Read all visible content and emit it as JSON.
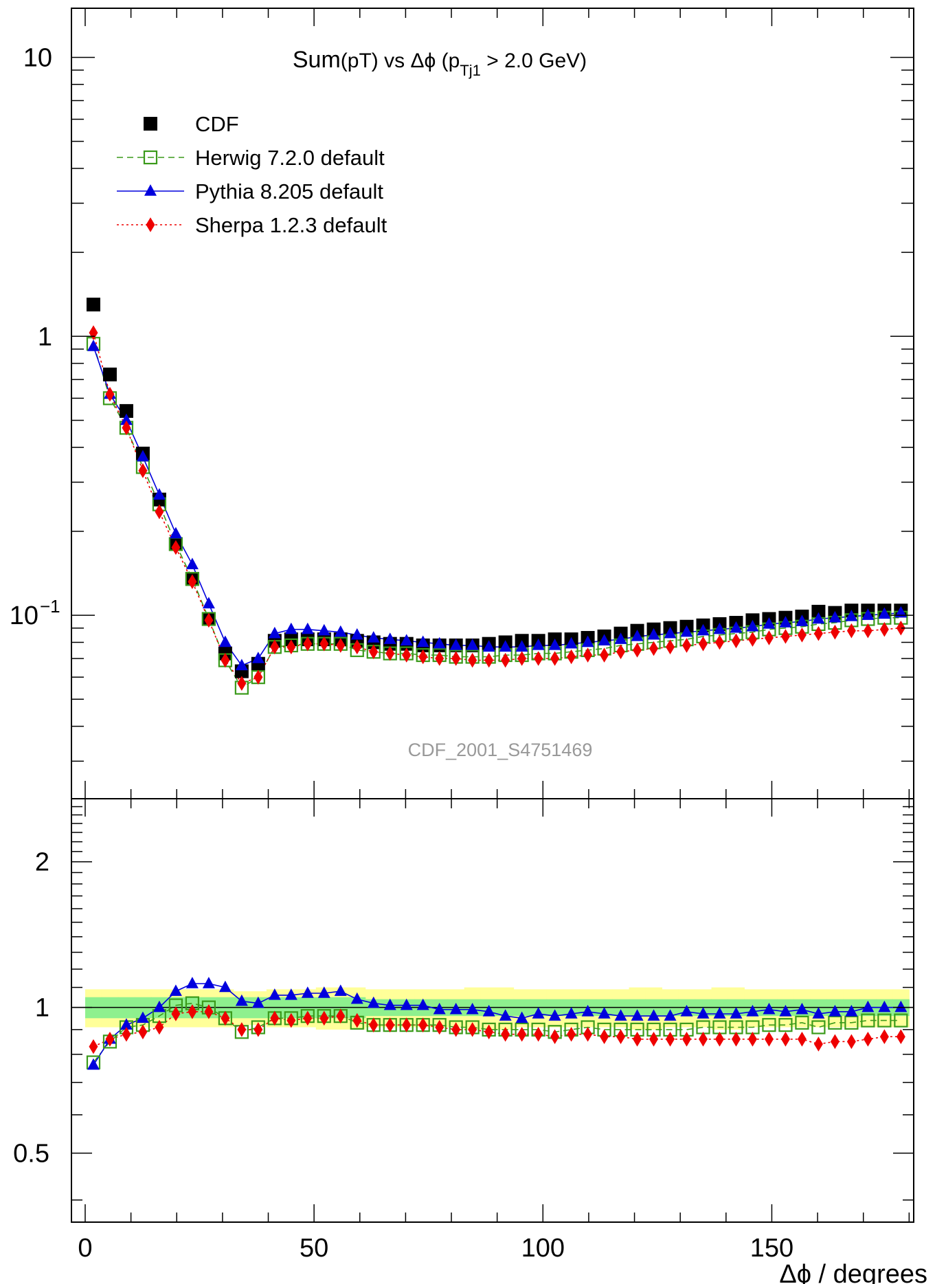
{
  "title": {
    "prefix": "Sum",
    "middle": "(pT) vs Δϕ (p",
    "sub": "Tj1",
    "suffix": " > 2.0 GeV)"
  },
  "watermark": "CDF_2001_S4751469",
  "xlabel": "Δϕ / degrees",
  "chart_data": [
    {
      "type": "scatter",
      "panel": "main",
      "yscale": "log",
      "xlim": [
        -3,
        181
      ],
      "ylim": [
        0.022,
        15
      ],
      "x_ticks": [
        "0",
        "50",
        "100",
        "150"
      ],
      "y_ticks": [
        "10",
        "1",
        "10^-1"
      ],
      "x": [
        1.8,
        5.4,
        9.0,
        12.6,
        16.2,
        19.8,
        23.4,
        27.0,
        30.6,
        34.2,
        37.8,
        41.4,
        45.0,
        48.6,
        52.2,
        55.8,
        59.4,
        63.0,
        66.6,
        70.2,
        73.8,
        77.4,
        81.0,
        84.6,
        88.2,
        91.8,
        95.4,
        99.0,
        102.6,
        106.2,
        109.8,
        113.4,
        117.0,
        120.6,
        124.2,
        127.8,
        131.4,
        135.0,
        138.6,
        142.2,
        145.8,
        149.4,
        153.0,
        156.6,
        160.2,
        163.8,
        167.4,
        171.0,
        174.6,
        178.2
      ],
      "series": [
        {
          "name": "CDF",
          "color": "#000000",
          "marker": "filled-square",
          "line": "none",
          "values": [
            1.3,
            0.73,
            0.54,
            0.38,
            0.26,
            0.18,
            0.135,
            0.097,
            0.073,
            0.063,
            0.067,
            0.081,
            0.082,
            0.082,
            0.082,
            0.082,
            0.081,
            0.08,
            0.079,
            0.079,
            0.078,
            0.078,
            0.078,
            0.078,
            0.079,
            0.08,
            0.081,
            0.081,
            0.082,
            0.082,
            0.083,
            0.084,
            0.086,
            0.088,
            0.089,
            0.09,
            0.091,
            0.092,
            0.093,
            0.094,
            0.096,
            0.097,
            0.098,
            0.099,
            0.103,
            0.102,
            0.104,
            0.104,
            0.104,
            0.104
          ]
        },
        {
          "name": "Herwig 7.2.0 default",
          "color": "#3a9a1a",
          "marker": "open-square",
          "line": "dashed",
          "values": [
            0.94,
            0.6,
            0.47,
            0.34,
            0.25,
            0.18,
            0.135,
            0.097,
            0.069,
            0.055,
            0.06,
            0.077,
            0.078,
            0.079,
            0.079,
            0.079,
            0.075,
            0.074,
            0.073,
            0.073,
            0.072,
            0.072,
            0.071,
            0.071,
            0.071,
            0.072,
            0.072,
            0.073,
            0.073,
            0.074,
            0.075,
            0.076,
            0.078,
            0.079,
            0.08,
            0.081,
            0.082,
            0.084,
            0.085,
            0.086,
            0.087,
            0.089,
            0.09,
            0.091,
            0.093,
            0.094,
            0.096,
            0.097,
            0.098,
            0.098
          ]
        },
        {
          "name": "Pythia 8.205 default",
          "color": "#0000dd",
          "marker": "filled-triangle",
          "line": "solid",
          "values": [
            0.92,
            0.62,
            0.5,
            0.37,
            0.27,
            0.196,
            0.152,
            0.11,
            0.08,
            0.066,
            0.07,
            0.086,
            0.089,
            0.089,
            0.088,
            0.087,
            0.085,
            0.083,
            0.082,
            0.081,
            0.08,
            0.079,
            0.078,
            0.078,
            0.077,
            0.077,
            0.077,
            0.078,
            0.078,
            0.079,
            0.08,
            0.081,
            0.082,
            0.084,
            0.085,
            0.086,
            0.087,
            0.088,
            0.089,
            0.09,
            0.091,
            0.093,
            0.094,
            0.095,
            0.097,
            0.098,
            0.099,
            0.1,
            0.101,
            0.102
          ]
        },
        {
          "name": "Sherpa 1.2.3 default",
          "color": "#ee0000",
          "marker": "filled-diamond",
          "line": "dotted",
          "values": [
            1.03,
            0.62,
            0.47,
            0.33,
            0.235,
            0.175,
            0.132,
            0.096,
            0.069,
            0.057,
            0.06,
            0.077,
            0.077,
            0.079,
            0.079,
            0.078,
            0.077,
            0.074,
            0.073,
            0.072,
            0.071,
            0.07,
            0.07,
            0.069,
            0.069,
            0.069,
            0.07,
            0.07,
            0.07,
            0.071,
            0.072,
            0.072,
            0.074,
            0.075,
            0.076,
            0.077,
            0.078,
            0.079,
            0.08,
            0.081,
            0.082,
            0.083,
            0.084,
            0.085,
            0.086,
            0.087,
            0.088,
            0.088,
            0.089,
            0.09
          ]
        }
      ]
    },
    {
      "type": "scatter",
      "panel": "ratio",
      "yscale": "log",
      "xlim": [
        -3,
        181
      ],
      "ylim": [
        0.36,
        2.7
      ],
      "x_ticks": [
        "0",
        "50",
        "100",
        "150"
      ],
      "y_ticks": [
        "2",
        "1",
        "0.5"
      ],
      "xlabel": "Δϕ / degrees",
      "x": [
        1.8,
        5.4,
        9.0,
        12.6,
        16.2,
        19.8,
        23.4,
        27.0,
        30.6,
        34.2,
        37.8,
        41.4,
        45.0,
        48.6,
        52.2,
        55.8,
        59.4,
        63.0,
        66.6,
        70.2,
        73.8,
        77.4,
        81.0,
        84.6,
        88.2,
        91.8,
        95.4,
        99.0,
        102.6,
        106.2,
        109.8,
        113.4,
        117.0,
        120.6,
        124.2,
        127.8,
        131.4,
        135.0,
        138.6,
        142.2,
        145.8,
        149.4,
        153.0,
        156.6,
        160.2,
        163.8,
        167.4,
        171.0,
        174.6,
        178.2
      ],
      "bands": {
        "inner": {
          "color": "#8ef08e",
          "half_width": [
            0.05,
            0.05,
            0.05,
            0.05,
            0.05,
            0.05,
            0.05,
            0.05,
            0.05,
            0.05,
            0.05,
            0.05,
            0.05,
            0.05,
            0.05,
            0.05,
            0.05,
            0.04,
            0.04,
            0.04,
            0.04,
            0.04,
            0.04,
            0.04,
            0.04,
            0.04,
            0.04,
            0.04,
            0.04,
            0.04,
            0.04,
            0.04,
            0.04,
            0.04,
            0.04,
            0.04,
            0.04,
            0.04,
            0.04,
            0.04,
            0.04,
            0.04,
            0.04,
            0.04,
            0.04,
            0.04,
            0.04,
            0.04,
            0.04,
            0.04
          ]
        },
        "outer": {
          "color": "#ffff99",
          "half_width": [
            0.09,
            0.09,
            0.09,
            0.09,
            0.09,
            0.09,
            0.09,
            0.09,
            0.09,
            0.08,
            0.08,
            0.09,
            0.09,
            0.09,
            0.1,
            0.1,
            0.1,
            0.09,
            0.09,
            0.09,
            0.09,
            0.09,
            0.09,
            0.1,
            0.1,
            0.1,
            0.09,
            0.09,
            0.09,
            0.09,
            0.09,
            0.09,
            0.09,
            0.1,
            0.1,
            0.09,
            0.09,
            0.09,
            0.1,
            0.1,
            0.09,
            0.09,
            0.09,
            0.09,
            0.09,
            0.09,
            0.09,
            0.09,
            0.09,
            0.09
          ]
        }
      },
      "series": [
        {
          "name": "Herwig 7.2.0 default",
          "color": "#3a9a1a",
          "marker": "open-square",
          "line": "dashed",
          "values": [
            0.77,
            0.85,
            0.91,
            0.92,
            0.96,
            1.01,
            1.02,
            1.0,
            0.95,
            0.89,
            0.91,
            0.95,
            0.95,
            0.96,
            0.96,
            0.96,
            0.93,
            0.92,
            0.92,
            0.92,
            0.92,
            0.92,
            0.91,
            0.91,
            0.9,
            0.9,
            0.9,
            0.9,
            0.89,
            0.9,
            0.91,
            0.9,
            0.9,
            0.9,
            0.9,
            0.9,
            0.9,
            0.91,
            0.91,
            0.91,
            0.91,
            0.92,
            0.92,
            0.93,
            0.91,
            0.93,
            0.93,
            0.94,
            0.94,
            0.94
          ]
        },
        {
          "name": "Pythia 8.205 default",
          "color": "#0000dd",
          "marker": "filled-triangle",
          "line": "solid",
          "values": [
            0.76,
            0.86,
            0.92,
            0.95,
            1.0,
            1.08,
            1.12,
            1.12,
            1.1,
            1.03,
            1.02,
            1.06,
            1.06,
            1.07,
            1.07,
            1.08,
            1.04,
            1.02,
            1.01,
            1.01,
            1.01,
            0.99,
            0.99,
            0.99,
            0.98,
            0.96,
            0.95,
            0.97,
            0.96,
            0.97,
            0.98,
            0.97,
            0.96,
            0.96,
            0.96,
            0.96,
            0.98,
            0.97,
            0.97,
            0.97,
            0.98,
            0.99,
            0.98,
            0.99,
            0.97,
            0.98,
            0.98,
            1.0,
            1.0,
            1.0
          ]
        },
        {
          "name": "Sherpa 1.2.3 default",
          "color": "#ee0000",
          "marker": "filled-diamond",
          "line": "dotted",
          "values": [
            0.83,
            0.86,
            0.88,
            0.89,
            0.91,
            0.97,
            0.98,
            0.98,
            0.95,
            0.9,
            0.9,
            0.95,
            0.94,
            0.95,
            0.95,
            0.96,
            0.94,
            0.92,
            0.92,
            0.92,
            0.92,
            0.91,
            0.9,
            0.9,
            0.89,
            0.88,
            0.88,
            0.88,
            0.87,
            0.88,
            0.88,
            0.87,
            0.87,
            0.86,
            0.86,
            0.86,
            0.86,
            0.86,
            0.86,
            0.86,
            0.86,
            0.86,
            0.86,
            0.86,
            0.84,
            0.85,
            0.85,
            0.86,
            0.87,
            0.87
          ]
        }
      ]
    }
  ]
}
